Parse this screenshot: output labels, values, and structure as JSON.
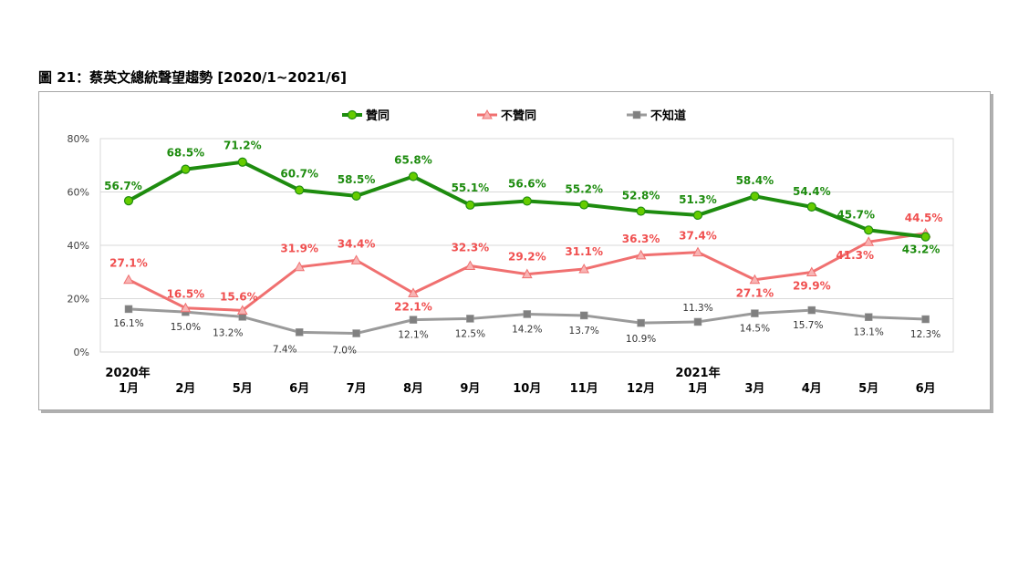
{
  "chart_data": {
    "type": "line",
    "title": "圖 21：蔡英文總統聲望趨勢 [2020/1~2021/6]",
    "year_labels": [
      "2020年",
      "",
      "",
      "",
      "",
      "",
      "",
      "",
      "",
      "",
      "2021年",
      "",
      "",
      "",
      ""
    ],
    "categories": [
      "1月",
      "2月",
      "5月",
      "6月",
      "7月",
      "8月",
      "9月",
      "10月",
      "11月",
      "12月",
      "1月",
      "3月",
      "4月",
      "5月",
      "6月"
    ],
    "y_ticks": [
      "0%",
      "20%",
      "40%",
      "60%",
      "80%"
    ],
    "ylim": [
      0,
      80
    ],
    "grid": true,
    "legend_position": "top",
    "series": [
      {
        "name": "贊同",
        "color": "#1e8c0f",
        "marker": "circle",
        "marker_fill": "#66cc00",
        "values": [
          56.7,
          68.5,
          71.2,
          60.7,
          58.5,
          65.8,
          55.1,
          56.6,
          55.2,
          52.8,
          51.3,
          58.4,
          54.4,
          45.7,
          43.2
        ],
        "labels": [
          "56.7%",
          "68.5%",
          "71.2%",
          "60.7%",
          "58.5%",
          "65.8%",
          "55.1%",
          "56.6%",
          "55.2%",
          "52.8%",
          "51.3%",
          "58.4%",
          "54.4%",
          "45.7%",
          "43.2%"
        ]
      },
      {
        "name": "不贊同",
        "color": "#f07070",
        "marker": "triangle",
        "marker_fill": "#f8b4b4",
        "values": [
          27.1,
          16.5,
          15.6,
          31.9,
          34.4,
          22.1,
          32.3,
          29.2,
          31.1,
          36.3,
          37.4,
          27.1,
          29.9,
          41.3,
          44.5
        ],
        "labels": [
          "27.1%",
          "16.5%",
          "15.6%",
          "31.9%",
          "34.4%",
          "22.1%",
          "32.3%",
          "29.2%",
          "31.1%",
          "36.3%",
          "37.4%",
          "27.1%",
          "29.9%",
          "41.3%",
          "44.5%"
        ]
      },
      {
        "name": "不知道",
        "color": "#9a9a9a",
        "marker": "square",
        "marker_fill": "#808080",
        "values": [
          16.1,
          15.0,
          13.2,
          7.4,
          7.0,
          12.1,
          12.5,
          14.2,
          13.7,
          10.9,
          11.3,
          14.5,
          15.7,
          13.1,
          12.3
        ],
        "labels": [
          "16.1%",
          "15.0%",
          "13.2%",
          "7.4%",
          "7.0%",
          "12.1%",
          "12.5%",
          "14.2%",
          "13.7%",
          "10.9%",
          "11.3%",
          "14.5%",
          "15.7%",
          "13.1%",
          "12.3%"
        ]
      }
    ]
  }
}
